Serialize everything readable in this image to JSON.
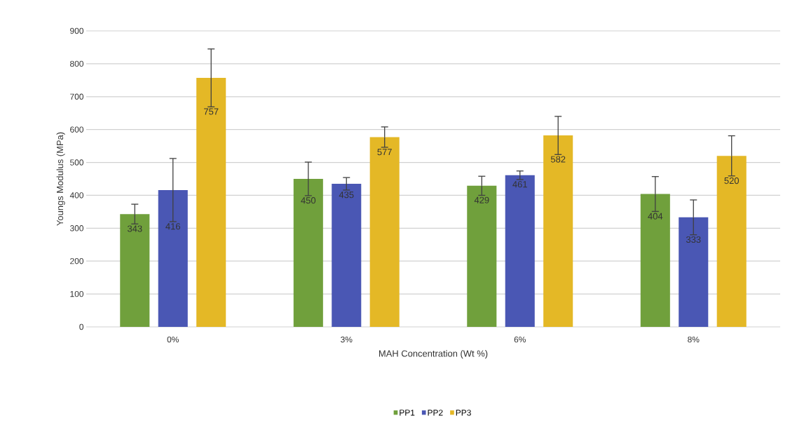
{
  "chart_data": {
    "type": "bar",
    "xlabel": "MAH Concentration  (Wt %)",
    "ylabel": "Youngs Modulus (MPa)",
    "categories": [
      "0%",
      "3%",
      "6%",
      "8%"
    ],
    "series": [
      {
        "name": "PP1",
        "color": "#70a03c",
        "values": [
          343,
          450,
          429,
          404
        ],
        "errors": [
          30,
          51,
          29,
          53
        ]
      },
      {
        "name": "PP2",
        "color": "#4a57b4",
        "values": [
          416,
          435,
          461,
          333
        ],
        "errors": [
          96,
          19,
          13,
          53
        ]
      },
      {
        "name": "PP3",
        "color": "#e4b826",
        "values": [
          757,
          577,
          582,
          520
        ],
        "errors": [
          88,
          31,
          58,
          61
        ]
      }
    ],
    "ylim": [
      0,
      900
    ],
    "yticks": [
      0,
      100,
      200,
      300,
      400,
      500,
      600,
      700,
      800,
      900
    ],
    "grid": "y",
    "legend": "bottom",
    "data_labels": true
  }
}
